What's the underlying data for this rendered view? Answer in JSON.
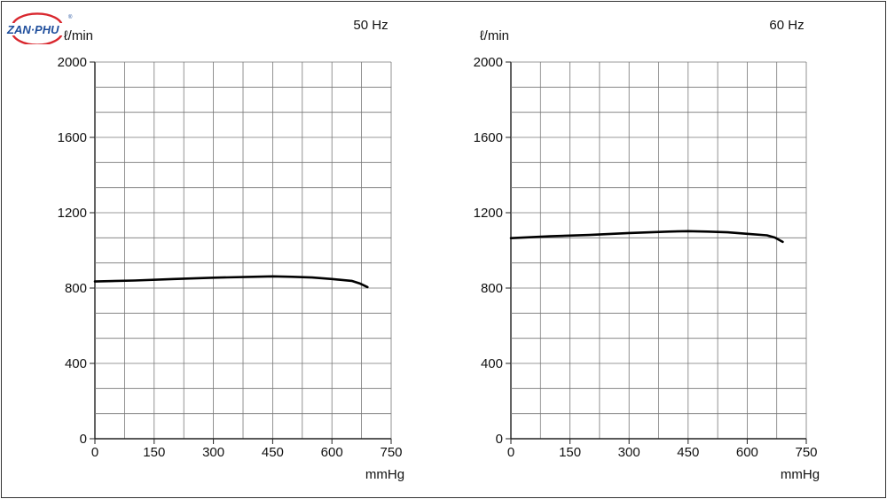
{
  "logo": {
    "text": "ZAN·PHU",
    "mark": "®",
    "colors": {
      "blue": "#1f4e9c",
      "red": "#d9272e"
    }
  },
  "chart_data": [
    {
      "type": "line",
      "title": "50 Hz",
      "ylabel": "ℓ/min",
      "xlabel": "mmHg",
      "xlim": [
        0,
        750
      ],
      "ylim": [
        0,
        2000
      ],
      "x_ticks": [
        0,
        150,
        300,
        450,
        600,
        750
      ],
      "y_ticks": [
        0,
        400,
        800,
        1200,
        1600,
        2000
      ],
      "x_minor": 75,
      "y_minor": 133.33,
      "grid": true,
      "series": [
        {
          "x": [
            0,
            100,
            200,
            300,
            400,
            450,
            500,
            550,
            600,
            650,
            670,
            690
          ],
          "values": [
            835,
            840,
            848,
            855,
            860,
            862,
            860,
            856,
            848,
            838,
            825,
            805
          ]
        }
      ]
    },
    {
      "type": "line",
      "title": "60 Hz",
      "ylabel": "ℓ/min",
      "xlabel": "mmHg",
      "xlim": [
        0,
        750
      ],
      "ylim": [
        0,
        2000
      ],
      "x_ticks": [
        0,
        150,
        300,
        450,
        600,
        750
      ],
      "y_ticks": [
        0,
        400,
        800,
        1200,
        1600,
        2000
      ],
      "x_minor": 75,
      "y_minor": 133.33,
      "grid": true,
      "series": [
        {
          "x": [
            0,
            100,
            200,
            300,
            400,
            450,
            500,
            550,
            600,
            650,
            670,
            690
          ],
          "values": [
            1065,
            1075,
            1082,
            1092,
            1100,
            1102,
            1100,
            1096,
            1088,
            1080,
            1068,
            1045
          ]
        }
      ]
    }
  ]
}
